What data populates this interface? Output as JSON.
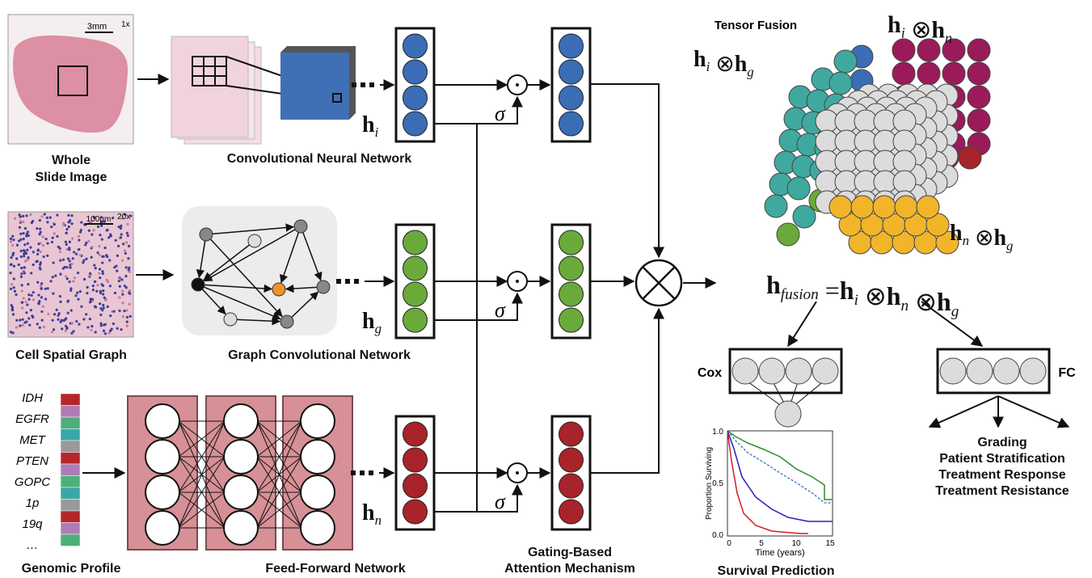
{
  "wsi": {
    "title_lines": [
      "Whole",
      "Slide Image"
    ],
    "scale": "3mm",
    "zoom": "1x"
  },
  "cnn": {
    "label": "Convolutional Neural Network",
    "embedding": {
      "base": "h",
      "sub": "i"
    }
  },
  "cell_graph": {
    "title": "Cell Spatial Graph",
    "scale": "100µm",
    "zoom": "20x"
  },
  "gcn": {
    "label": "Graph Convolutional Network",
    "embedding": {
      "base": "h",
      "sub": "g"
    }
  },
  "genomic": {
    "title": "Genomic Profile",
    "features": [
      "IDH",
      "EGFR",
      "MET",
      "PTEN",
      "GOPC",
      "1p",
      "19q",
      "…"
    ]
  },
  "ffn": {
    "label": "Feed-Forward Network",
    "embedding": {
      "base": "h",
      "sub": "n"
    }
  },
  "gating": {
    "label_lines": [
      "Gating-Based",
      "Attention Mechanism"
    ],
    "gate_symbols": [
      "σ",
      "σ",
      "σ"
    ]
  },
  "fusion": {
    "title": "Tensor Fusion",
    "products": [
      [
        {
          "base": "h",
          "sub": "i"
        },
        "⊗",
        {
          "base": "h",
          "sub": "n"
        }
      ],
      [
        {
          "base": "h",
          "sub": "i"
        },
        "⊗",
        {
          "base": "h",
          "sub": "g"
        }
      ],
      [
        {
          "base": "h",
          "sub": "n"
        },
        "⊗",
        {
          "base": "h",
          "sub": "g"
        }
      ]
    ],
    "equation": [
      {
        "base": "h",
        "sub": "fusion"
      },
      "=",
      {
        "base": "h",
        "sub": "i"
      },
      "⊗",
      {
        "base": "h",
        "sub": "n"
      },
      "⊗",
      {
        "base": "h",
        "sub": "g"
      }
    ]
  },
  "outputs": {
    "cox": "Cox",
    "fc": "FC",
    "survival": {
      "title": "Survival Prediction",
      "y_label": "Proportion Surviving",
      "x_label": "Time (years)",
      "y_ticks": [
        "0.0",
        "0.5",
        "1.0"
      ],
      "x_ticks": [
        "0",
        "5",
        "10",
        "15"
      ]
    },
    "tasks": [
      "Grading",
      "Patient Stratification",
      "Treatment Response",
      "Treatment Resistance"
    ]
  }
}
